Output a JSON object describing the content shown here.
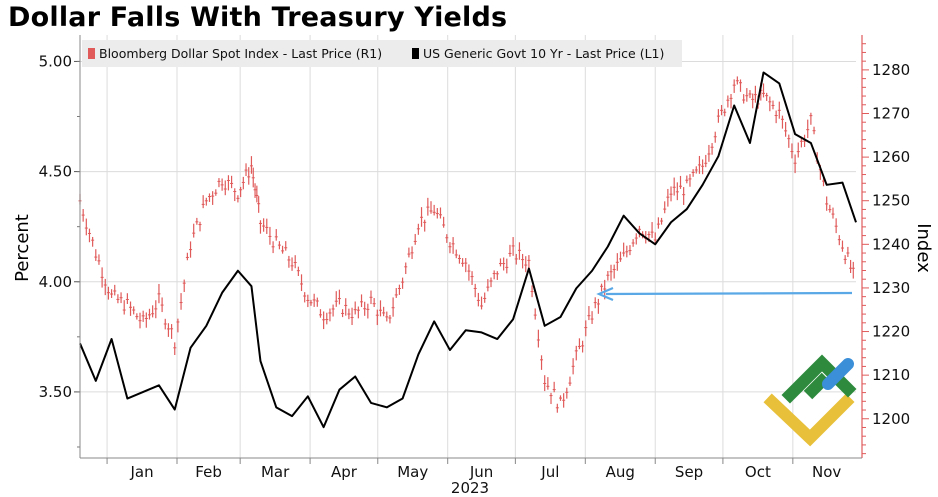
{
  "title": "Dollar Falls With Treasury Yields",
  "chart_data": {
    "type": "line",
    "title": "Dollar Falls With Treasury Yields",
    "xlabel": "2023",
    "x_ticks": [
      "Jan",
      "Feb",
      "Mar",
      "Apr",
      "May",
      "Jun",
      "Jul",
      "Aug",
      "Sep",
      "Oct",
      "Nov"
    ],
    "x_range": [
      "2022-12-20",
      "2023-11-29"
    ],
    "left_axis": {
      "label": "Percent",
      "range": [
        3.2,
        5.12
      ],
      "ticks": [
        "3.50",
        "4.00",
        "4.50",
        "5.00"
      ]
    },
    "right_axis": {
      "label": "Index",
      "range": [
        1191,
        1288
      ],
      "ticks": [
        "1200",
        "1210",
        "1220",
        "1230",
        "1240",
        "1250",
        "1260",
        "1270",
        "1280"
      ]
    },
    "legend": [
      "Bloomberg Dollar Spot Index - Last Price (R1)",
      "US Generic Govt 10 Yr - Last Price (L1)"
    ],
    "legend_position": "top-left",
    "colors": {
      "dollar": "#e05a5a",
      "yield": "#000000",
      "arrow": "#5aa9e6",
      "right_axis": "#e05a5a"
    },
    "grid": true,
    "annotation": "arrow pointing from latest dollar index value back to the August level",
    "series": [
      {
        "name": "US Generic Govt 10 Yr - Last Price (L1)",
        "axis": "left",
        "x": [
          "2022-12-20",
          "2022-12-27",
          "2023-01-03",
          "2023-01-10",
          "2023-01-17",
          "2023-01-24",
          "2023-01-31",
          "2023-02-07",
          "2023-02-14",
          "2023-02-21",
          "2023-02-28",
          "2023-03-06",
          "2023-03-10",
          "2023-03-17",
          "2023-03-24",
          "2023-03-31",
          "2023-04-07",
          "2023-04-14",
          "2023-04-21",
          "2023-04-28",
          "2023-05-05",
          "2023-05-12",
          "2023-05-19",
          "2023-05-26",
          "2023-06-02",
          "2023-06-09",
          "2023-06-16",
          "2023-06-23",
          "2023-06-30",
          "2023-07-07",
          "2023-07-14",
          "2023-07-21",
          "2023-07-28",
          "2023-08-04",
          "2023-08-11",
          "2023-08-18",
          "2023-08-25",
          "2023-09-01",
          "2023-09-08",
          "2023-09-15",
          "2023-09-22",
          "2023-09-29",
          "2023-10-06",
          "2023-10-13",
          "2023-10-19",
          "2023-10-26",
          "2023-11-02",
          "2023-11-09",
          "2023-11-16",
          "2023-11-23",
          "2023-11-29"
        ],
        "values": [
          3.72,
          3.55,
          3.74,
          3.47,
          3.5,
          3.53,
          3.42,
          3.7,
          3.8,
          3.95,
          4.05,
          3.98,
          3.64,
          3.43,
          3.39,
          3.48,
          3.34,
          3.51,
          3.57,
          3.45,
          3.43,
          3.47,
          3.67,
          3.82,
          3.69,
          3.78,
          3.77,
          3.74,
          3.83,
          4.06,
          3.8,
          3.84,
          3.97,
          4.05,
          4.16,
          4.3,
          4.22,
          4.17,
          4.27,
          4.33,
          4.44,
          4.57,
          4.8,
          4.63,
          4.95,
          4.9,
          4.67,
          4.63,
          4.44,
          4.45,
          4.27
        ]
      },
      {
        "name": "Bloomberg Dollar Spot Index - Last Price (R1)",
        "axis": "right",
        "x": [
          "2022-12-20",
          "2022-12-27",
          "2023-01-03",
          "2023-01-10",
          "2023-01-17",
          "2023-01-24",
          "2023-01-31",
          "2023-02-07",
          "2023-02-14",
          "2023-02-21",
          "2023-02-28",
          "2023-03-06",
          "2023-03-10",
          "2023-03-17",
          "2023-03-24",
          "2023-03-31",
          "2023-04-07",
          "2023-04-14",
          "2023-04-21",
          "2023-04-28",
          "2023-05-05",
          "2023-05-12",
          "2023-05-19",
          "2023-05-26",
          "2023-06-02",
          "2023-06-09",
          "2023-06-16",
          "2023-06-23",
          "2023-06-30",
          "2023-07-07",
          "2023-07-14",
          "2023-07-21",
          "2023-07-28",
          "2023-08-04",
          "2023-08-11",
          "2023-08-18",
          "2023-08-25",
          "2023-09-01",
          "2023-09-08",
          "2023-09-15",
          "2023-09-22",
          "2023-09-29",
          "2023-10-06",
          "2023-10-13",
          "2023-10-19",
          "2023-10-26",
          "2023-11-02",
          "2023-11-09",
          "2023-11-16",
          "2023-11-23",
          "2023-11-29"
        ],
        "values": [
          1250,
          1238,
          1228,
          1226,
          1222,
          1227,
          1218,
          1240,
          1250,
          1255,
          1252,
          1258,
          1245,
          1240,
          1236,
          1228,
          1224,
          1226,
          1224,
          1227,
          1222,
          1232,
          1245,
          1248,
          1241,
          1236,
          1226,
          1234,
          1238,
          1236,
          1209,
          1203,
          1214,
          1224,
          1232,
          1237,
          1244,
          1241,
          1252,
          1253,
          1258,
          1268,
          1277,
          1273,
          1274,
          1270,
          1260,
          1268,
          1250,
          1240,
          1231
        ]
      }
    ]
  }
}
